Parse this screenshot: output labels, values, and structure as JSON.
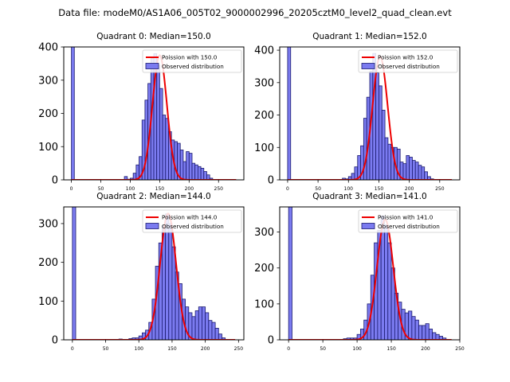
{
  "figure_title": "Data file: modeM0/AS1A06_005T02_9000002996_20205cztM0_level2_quad_clean.evt",
  "colors": {
    "bar_fill": "#7b7bf0",
    "bar_edge": "#1a1a6e",
    "poisson_line": "#ee0000"
  },
  "chart_data": [
    {
      "type": "bar",
      "title": "Quadrant 0: Median=150.0",
      "legend": {
        "line": "Poission with 150.0",
        "bars": "Observed distribution",
        "placement": "top-right"
      },
      "xlim": [
        -13,
        293
      ],
      "ylim": [
        0,
        400
      ],
      "xticks": [
        0,
        50,
        100,
        150,
        200,
        250
      ],
      "yticks": [
        0,
        100,
        200,
        300,
        400
      ],
      "bin_width": 5,
      "bins": [
        [
          0,
          420
        ],
        [
          90,
          10
        ],
        [
          95,
          2
        ],
        [
          100,
          5
        ],
        [
          105,
          20
        ],
        [
          110,
          45
        ],
        [
          115,
          70
        ],
        [
          120,
          180
        ],
        [
          125,
          240
        ],
        [
          130,
          290
        ],
        [
          135,
          365
        ],
        [
          140,
          380
        ],
        [
          145,
          345
        ],
        [
          150,
          275
        ],
        [
          155,
          195
        ],
        [
          160,
          185
        ],
        [
          165,
          145
        ],
        [
          170,
          120
        ],
        [
          175,
          115
        ],
        [
          180,
          110
        ],
        [
          185,
          90
        ],
        [
          190,
          55
        ],
        [
          195,
          85
        ],
        [
          200,
          80
        ],
        [
          205,
          50
        ],
        [
          210,
          45
        ],
        [
          215,
          40
        ],
        [
          220,
          35
        ],
        [
          225,
          25
        ],
        [
          230,
          15
        ],
        [
          235,
          5
        ]
      ],
      "poisson_mean": 150,
      "poisson_peak": 375,
      "poisson_range": [
        0,
        280
      ]
    },
    {
      "type": "bar",
      "title": "Quadrant 1: Median=152.0",
      "legend": {
        "line": "Poission with 152.0",
        "bars": "Observed distribution",
        "placement": "top-right"
      },
      "xlim": [
        -13,
        283
      ],
      "ylim": [
        0,
        410
      ],
      "xticks": [
        0,
        50,
        100,
        150,
        200,
        250
      ],
      "yticks": [
        0,
        100,
        200,
        300,
        400
      ],
      "bin_width": 5,
      "bins": [
        [
          0,
          420
        ],
        [
          90,
          5
        ],
        [
          95,
          3
        ],
        [
          100,
          10
        ],
        [
          105,
          20
        ],
        [
          110,
          40
        ],
        [
          115,
          75
        ],
        [
          120,
          105
        ],
        [
          125,
          190
        ],
        [
          130,
          255
        ],
        [
          135,
          335
        ],
        [
          140,
          390
        ],
        [
          145,
          330
        ],
        [
          150,
          290
        ],
        [
          155,
          215
        ],
        [
          160,
          130
        ],
        [
          165,
          110
        ],
        [
          170,
          100
        ],
        [
          175,
          100
        ],
        [
          180,
          95
        ],
        [
          185,
          55
        ],
        [
          190,
          50
        ],
        [
          195,
          75
        ],
        [
          200,
          70
        ],
        [
          205,
          60
        ],
        [
          210,
          55
        ],
        [
          215,
          45
        ],
        [
          220,
          40
        ],
        [
          225,
          25
        ],
        [
          230,
          10
        ],
        [
          235,
          3
        ]
      ],
      "poisson_mean": 152,
      "poisson_peak": 380,
      "poisson_range": [
        0,
        270
      ]
    },
    {
      "type": "bar",
      "title": "Quadrant 2: Median=144.0",
      "legend": {
        "line": "Poission with 144.0",
        "bars": "Observed distribution",
        "placement": "top-right"
      },
      "xlim": [
        -13,
        258
      ],
      "ylim": [
        0,
        343
      ],
      "xticks": [
        0,
        50,
        100,
        150,
        200,
        250
      ],
      "yticks": [
        0,
        100,
        200,
        300
      ],
      "bin_width": 5,
      "bins": [
        [
          0,
          350
        ],
        [
          70,
          2
        ],
        [
          85,
          3
        ],
        [
          90,
          5
        ],
        [
          95,
          5
        ],
        [
          100,
          10
        ],
        [
          105,
          18
        ],
        [
          110,
          25
        ],
        [
          115,
          45
        ],
        [
          120,
          105
        ],
        [
          125,
          190
        ],
        [
          130,
          250
        ],
        [
          135,
          295
        ],
        [
          140,
          325
        ],
        [
          145,
          300
        ],
        [
          150,
          240
        ],
        [
          155,
          175
        ],
        [
          160,
          145
        ],
        [
          165,
          105
        ],
        [
          170,
          85
        ],
        [
          175,
          70
        ],
        [
          180,
          60
        ],
        [
          185,
          75
        ],
        [
          190,
          85
        ],
        [
          195,
          85
        ],
        [
          200,
          70
        ],
        [
          205,
          50
        ],
        [
          210,
          45
        ],
        [
          215,
          30
        ],
        [
          220,
          15
        ],
        [
          225,
          5
        ]
      ],
      "poisson_mean": 144,
      "poisson_peak": 326,
      "poisson_range": [
        0,
        245
      ]
    },
    {
      "type": "bar",
      "title": "Quadrant 3: Median=141.0",
      "legend": {
        "line": "Poission with 141.0",
        "bars": "Observed distribution",
        "placement": "top-right"
      },
      "xlim": [
        -13,
        250
      ],
      "ylim": [
        0,
        370
      ],
      "xticks": [
        0,
        50,
        100,
        150,
        200,
        250
      ],
      "yticks": [
        0,
        100,
        200,
        300
      ],
      "bin_width": 5,
      "bins": [
        [
          0,
          380
        ],
        [
          80,
          3
        ],
        [
          85,
          5
        ],
        [
          90,
          5
        ],
        [
          95,
          5
        ],
        [
          100,
          15
        ],
        [
          105,
          30
        ],
        [
          110,
          55
        ],
        [
          115,
          100
        ],
        [
          120,
          180
        ],
        [
          125,
          270
        ],
        [
          130,
          305
        ],
        [
          135,
          345
        ],
        [
          140,
          320
        ],
        [
          145,
          270
        ],
        [
          150,
          200
        ],
        [
          155,
          130
        ],
        [
          160,
          105
        ],
        [
          165,
          85
        ],
        [
          170,
          75
        ],
        [
          175,
          80
        ],
        [
          180,
          65
        ],
        [
          185,
          55
        ],
        [
          190,
          40
        ],
        [
          195,
          40
        ],
        [
          200,
          45
        ],
        [
          205,
          30
        ],
        [
          210,
          20
        ],
        [
          215,
          15
        ],
        [
          220,
          10
        ],
        [
          225,
          5
        ]
      ],
      "poisson_mean": 141,
      "poisson_peak": 335,
      "poisson_range": [
        0,
        238
      ]
    }
  ]
}
